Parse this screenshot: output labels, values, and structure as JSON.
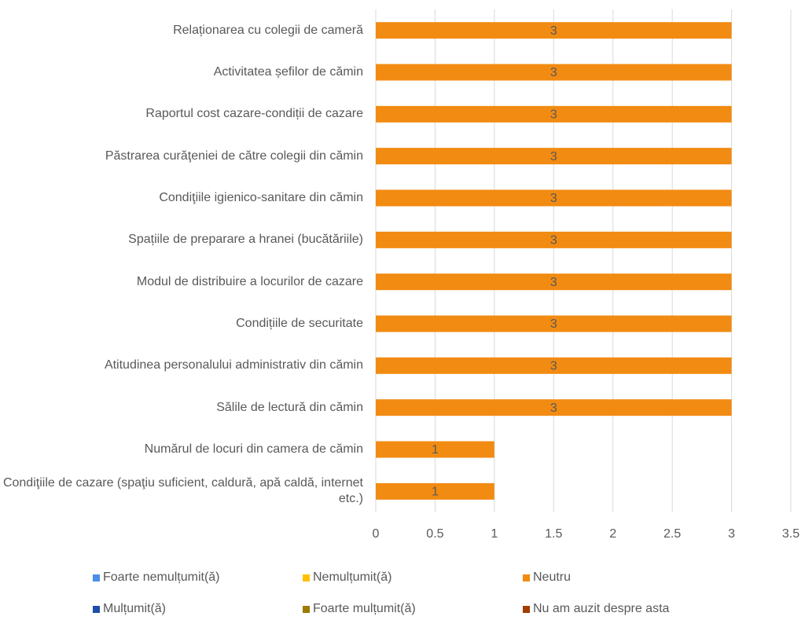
{
  "chart_data": {
    "type": "stacked_barh",
    "categories": [
      "Relaționarea cu colegii de cameră",
      "Activitatea șefilor de cămin",
      "Raportul cost cazare-condiții de cazare",
      "Păstrarea curăţeniei de către colegii din cămin",
      "Condiţiile igienico-sanitare din cămin ",
      "Spațiile de preparare a hranei (bucătăriile)",
      "Modul de distribuire a locurilor de cazare",
      "Condițiile de securitate",
      "Atitudinea personalului administrativ din cămin",
      "Sălile de lectură din cămin",
      "Numărul de locuri din camera de cămin",
      "Condiţiile de cazare (spaţiu suficient, caldură, apă caldă, internet etc.)"
    ],
    "series": [
      {
        "name": "Foarte nemulțumit(ă)",
        "color": "#4a8fe8",
        "values": [
          null,
          null,
          null,
          null,
          null,
          null,
          null,
          null,
          null,
          null,
          null,
          null
        ]
      },
      {
        "name": "Nemulțumit(ă)",
        "color": "#ffc000",
        "values": [
          null,
          null,
          null,
          null,
          null,
          null,
          null,
          null,
          null,
          null,
          null,
          null
        ]
      },
      {
        "name": "Neutru",
        "color": "#f28b12",
        "values": [
          3,
          3,
          3,
          3,
          3,
          3,
          3,
          3,
          3,
          3,
          1,
          1
        ]
      },
      {
        "name": "Mulțumit(ă)",
        "color": "#1f4eaa",
        "values": [
          null,
          null,
          null,
          null,
          null,
          null,
          null,
          null,
          null,
          null,
          null,
          null
        ]
      },
      {
        "name": "Foarte mulțumit(ă)",
        "color": "#9c7a00",
        "values": [
          null,
          null,
          null,
          null,
          null,
          null,
          null,
          null,
          null,
          null,
          null,
          null
        ]
      },
      {
        "name": "Nu am auzit despre asta",
        "color": "#a33d00",
        "values": [
          null,
          null,
          null,
          null,
          null,
          null,
          null,
          null,
          null,
          null,
          null,
          null
        ]
      }
    ],
    "xlim": [
      0,
      3.5
    ],
    "xticks": [
      0,
      0.5,
      1,
      1.5,
      2,
      2.5,
      3,
      3.5
    ],
    "grid": true,
    "data_labels": true,
    "legend": "bottom"
  }
}
